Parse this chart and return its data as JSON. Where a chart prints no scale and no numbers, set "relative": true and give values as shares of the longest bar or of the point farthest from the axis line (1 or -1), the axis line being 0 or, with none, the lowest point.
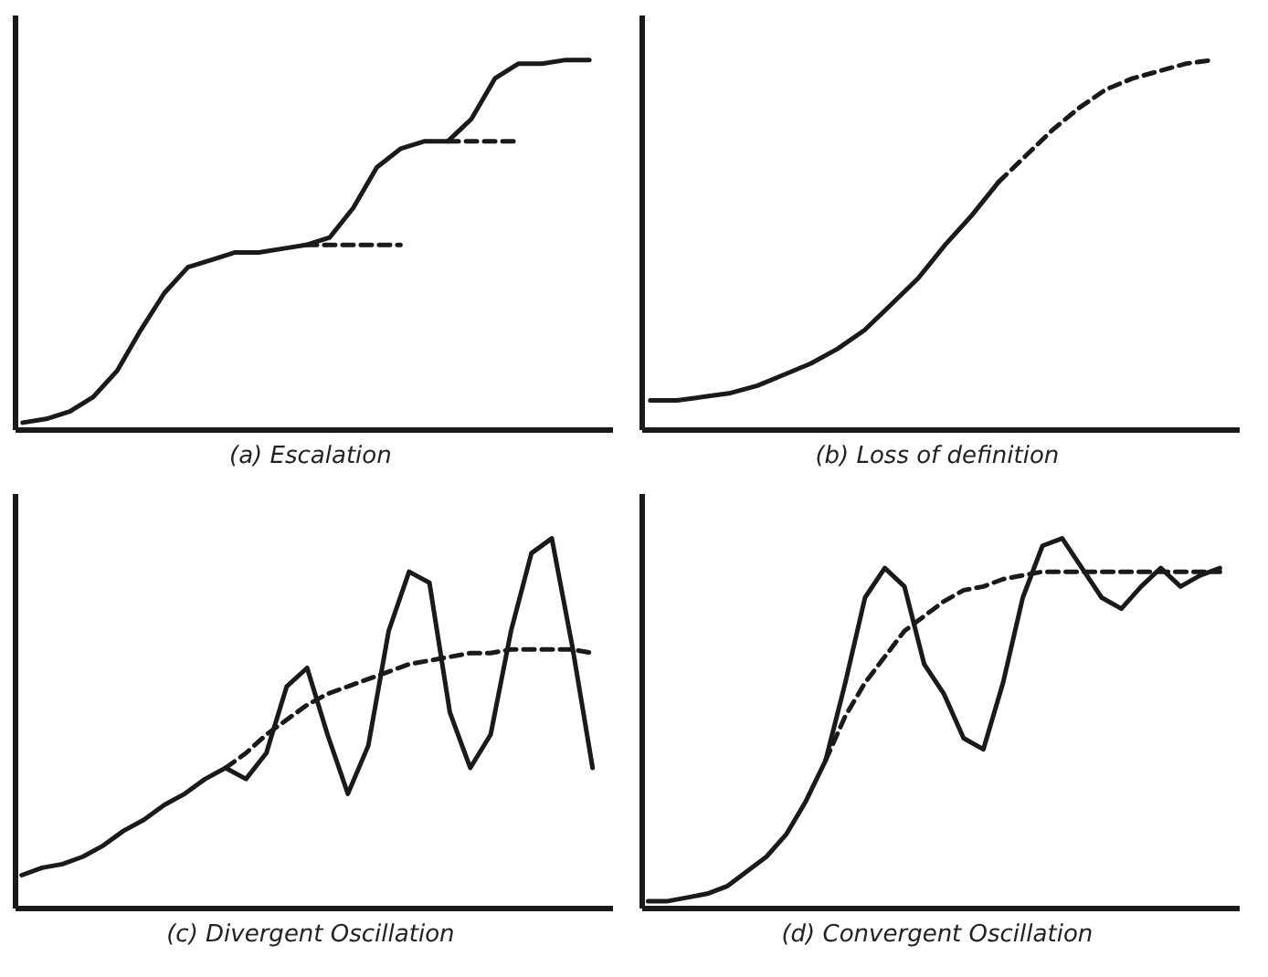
{
  "chart_data": [
    {
      "type": "line",
      "title": "(a)  Escalation",
      "relative": true,
      "categories": [
        null,
        null,
        null,
        null,
        null,
        null,
        null,
        null,
        null,
        null,
        null,
        null,
        null,
        null,
        null,
        null,
        null,
        null,
        null,
        null,
        null,
        null,
        null,
        null,
        null
      ],
      "series": [
        {
          "color": "#1a1a1a",
          "line_style": "solid",
          "values": [
            0.02,
            0.03,
            0.05,
            0.09,
            0.16,
            0.27,
            0.37,
            0.44,
            0.46,
            0.48,
            0.48,
            0.49,
            0.5,
            0.52,
            0.6,
            0.71,
            0.76,
            0.78,
            0.78,
            0.84,
            0.95,
            0.99,
            0.99,
            1,
            1
          ]
        },
        {
          "color": "#1a1a1a",
          "line_style": "dashed",
          "values": [
            null,
            null,
            null,
            null,
            null,
            null,
            null,
            null,
            null,
            null,
            null,
            null,
            0.5,
            0.5,
            0.5,
            0.5,
            0.5,
            null,
            null,
            null,
            null,
            null,
            null,
            null,
            null
          ]
        },
        {
          "color": "#1a1a1a",
          "line_style": "dashed",
          "values": [
            null,
            null,
            null,
            null,
            null,
            null,
            null,
            null,
            null,
            null,
            null,
            null,
            null,
            null,
            null,
            null,
            null,
            null,
            0.78,
            0.78,
            0.78,
            0.78,
            null,
            null,
            null
          ]
        }
      ]
    },
    {
      "type": "line",
      "title": "(b)  Loss of definition",
      "relative": true,
      "categories": [
        null,
        null,
        null,
        null,
        null,
        null,
        null,
        null,
        null,
        null,
        null,
        null,
        null,
        null,
        null,
        null,
        null,
        null,
        null,
        null,
        null,
        null
      ],
      "series": [
        {
          "color": "#1a1a1a",
          "line_style": "solid",
          "values": [
            0.08,
            0.08,
            0.09,
            0.1,
            0.12,
            0.15,
            0.18,
            0.22,
            0.27,
            0.34,
            0.41,
            0.5,
            0.58,
            0.67,
            null,
            null,
            null,
            null,
            null,
            null,
            null,
            null
          ]
        },
        {
          "color": "#1a1a1a",
          "line_style": "dashed",
          "values": [
            null,
            null,
            null,
            null,
            null,
            null,
            null,
            null,
            null,
            null,
            null,
            null,
            null,
            0.67,
            0.74,
            0.81,
            0.87,
            0.92,
            0.95,
            0.97,
            0.99,
            1
          ]
        }
      ]
    },
    {
      "type": "line",
      "title": "(c)  Divergent Oscillation",
      "relative": true,
      "categories": [
        null,
        null,
        null,
        null,
        null,
        null,
        null,
        null,
        null,
        null,
        null,
        null,
        null,
        null,
        null,
        null,
        null,
        null,
        null,
        null,
        null,
        null,
        null,
        null,
        null,
        null,
        null,
        null,
        null
      ],
      "series": [
        {
          "color": "#1a1a1a",
          "line_style": "solid",
          "values": [
            0.09,
            0.11,
            0.12,
            0.14,
            0.17,
            0.21,
            0.24,
            0.28,
            0.31,
            0.35,
            0.38,
            0.35,
            0.42,
            0.6,
            0.65,
            0.47,
            0.31,
            0.44,
            0.75,
            0.91,
            0.88,
            0.53,
            0.38,
            0.47,
            0.75,
            0.96,
            1,
            0.71,
            0.38
          ]
        },
        {
          "color": "#1a1a1a",
          "line_style": "dashed",
          "values": [
            null,
            null,
            null,
            null,
            null,
            null,
            null,
            null,
            null,
            null,
            0.38,
            0.42,
            0.47,
            0.51,
            0.55,
            0.58,
            0.6,
            0.62,
            0.64,
            0.66,
            0.67,
            0.68,
            0.69,
            0.69,
            0.7,
            0.7,
            0.7,
            0.7,
            0.69
          ]
        }
      ]
    },
    {
      "type": "line",
      "title": "(d)  Convergent Oscillation",
      "relative": true,
      "categories": [
        null,
        null,
        null,
        null,
        null,
        null,
        null,
        null,
        null,
        null,
        null,
        null,
        null,
        null,
        null,
        null,
        null,
        null,
        null,
        null,
        null,
        null,
        null,
        null,
        null,
        null,
        null,
        null,
        null,
        null
      ],
      "series": [
        {
          "color": "#1a1a1a",
          "line_style": "solid",
          "values": [
            0.02,
            0.02,
            0.03,
            0.04,
            0.06,
            0.1,
            0.14,
            0.2,
            0.29,
            0.4,
            0.61,
            0.84,
            0.92,
            0.87,
            0.66,
            0.58,
            0.46,
            0.43,
            0.61,
            0.84,
            0.98,
            1,
            0.92,
            0.84,
            0.81,
            0.87,
            0.92,
            0.87,
            0.9,
            0.92
          ]
        },
        {
          "color": "#1a1a1a",
          "line_style": "dashed",
          "values": [
            null,
            null,
            null,
            null,
            null,
            null,
            null,
            null,
            null,
            0.4,
            0.52,
            0.61,
            0.68,
            0.75,
            0.79,
            0.83,
            0.86,
            0.87,
            0.89,
            0.9,
            0.91,
            0.91,
            0.91,
            0.91,
            0.91,
            0.91,
            0.91,
            0.91,
            0.91,
            0.91
          ]
        }
      ]
    }
  ]
}
